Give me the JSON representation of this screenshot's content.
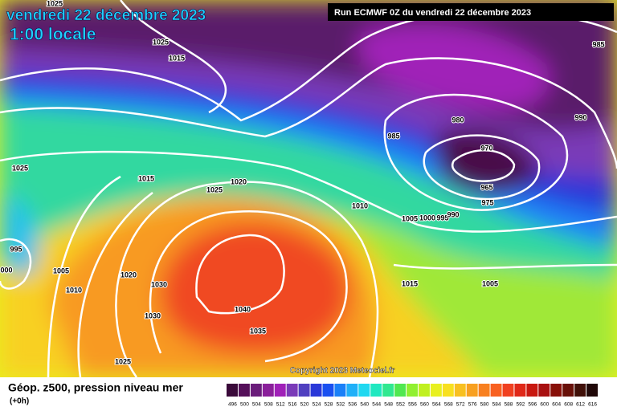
{
  "header": {
    "date": "vendredi 22 décembre 2023",
    "time": "1:00 locale",
    "run": "Run ECMWF 0Z du vendredi 22 décembre 2023"
  },
  "isobar_labels": [
    "1025",
    "1025",
    "1015",
    "985",
    "980",
    "990",
    "985",
    "970",
    "1025",
    "1015",
    "1025",
    "1020",
    "965",
    "975",
    "1010",
    "1005",
    "1000",
    "995",
    "990",
    "995",
    "000",
    "1005",
    "1020",
    "1030",
    "1010",
    "1015",
    "1005",
    "1040",
    "1030",
    "1035",
    "1025"
  ],
  "copyright": "Copyright 2023 Meteociel.fr",
  "footer": {
    "title": "Géop. z500, pression niveau mer",
    "step": "(+0h)"
  },
  "scale": {
    "labels": [
      "496",
      "500",
      "504",
      "508",
      "512",
      "516",
      "520",
      "524",
      "528",
      "532",
      "536",
      "540",
      "544",
      "548",
      "552",
      "556",
      "560",
      "564",
      "568",
      "572",
      "576",
      "580",
      "584",
      "588",
      "592",
      "596",
      "600",
      "604",
      "608",
      "612",
      "616"
    ],
    "colors": [
      "#3a0a3a",
      "#55105a",
      "#6a1c7a",
      "#8a1f9a",
      "#a020b8",
      "#7a3ab8",
      "#5040c0",
      "#2a38d8",
      "#1a50f0",
      "#1a80f8",
      "#20b0f8",
      "#20d8f0",
      "#20e8c0",
      "#30e890",
      "#50e850",
      "#90f030",
      "#c0f020",
      "#e8f020",
      "#f8e020",
      "#f8c020",
      "#f8a020",
      "#f88020",
      "#f86020",
      "#f04020",
      "#e02818",
      "#c81810",
      "#a81010",
      "#881008",
      "#681008",
      "#401008",
      "#200808"
    ]
  }
}
